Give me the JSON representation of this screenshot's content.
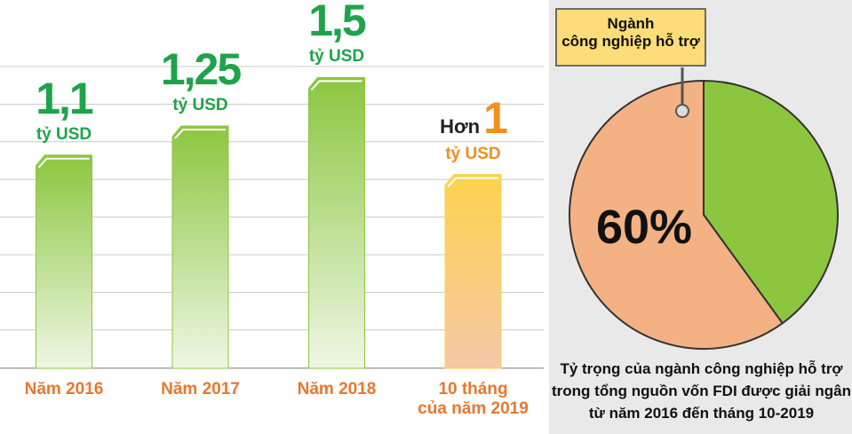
{
  "chart_data": [
    {
      "type": "bar",
      "categories": [
        "Năm 2016",
        "Năm 2017",
        "Năm 2018",
        "10 tháng\ncủa năm 2019"
      ],
      "values": [
        1.1,
        1.25,
        1.5,
        1
      ],
      "value_labels": [
        "1,1",
        "1,25",
        "1,5",
        "1"
      ],
      "value_label_prefixes": [
        null,
        null,
        null,
        "Hơn"
      ],
      "unit": "tỷ USD",
      "colors": [
        "#8cc63f",
        "#8cc63f",
        "#8cc63f",
        "#fcd34d"
      ],
      "label_colors": [
        "#1fa34a",
        "#1fa34a",
        "#1fa34a",
        "#f0901e"
      ],
      "ylim": [
        0,
        1.9
      ]
    },
    {
      "type": "pie",
      "labels": [
        null,
        "Ngành\ncông nghiệp hỗ trợ"
      ],
      "values": [
        40,
        60
      ],
      "value_labels": [
        null,
        "60%"
      ],
      "colors": [
        "#8cc63f",
        "#f4b183"
      ],
      "caption": "Tỷ trọng của ngành công nghiệp hỗ trợ\ntrong tổng nguồn vốn FDI được giải ngân\ntừ năm 2016  đến tháng 10-2019"
    }
  ]
}
